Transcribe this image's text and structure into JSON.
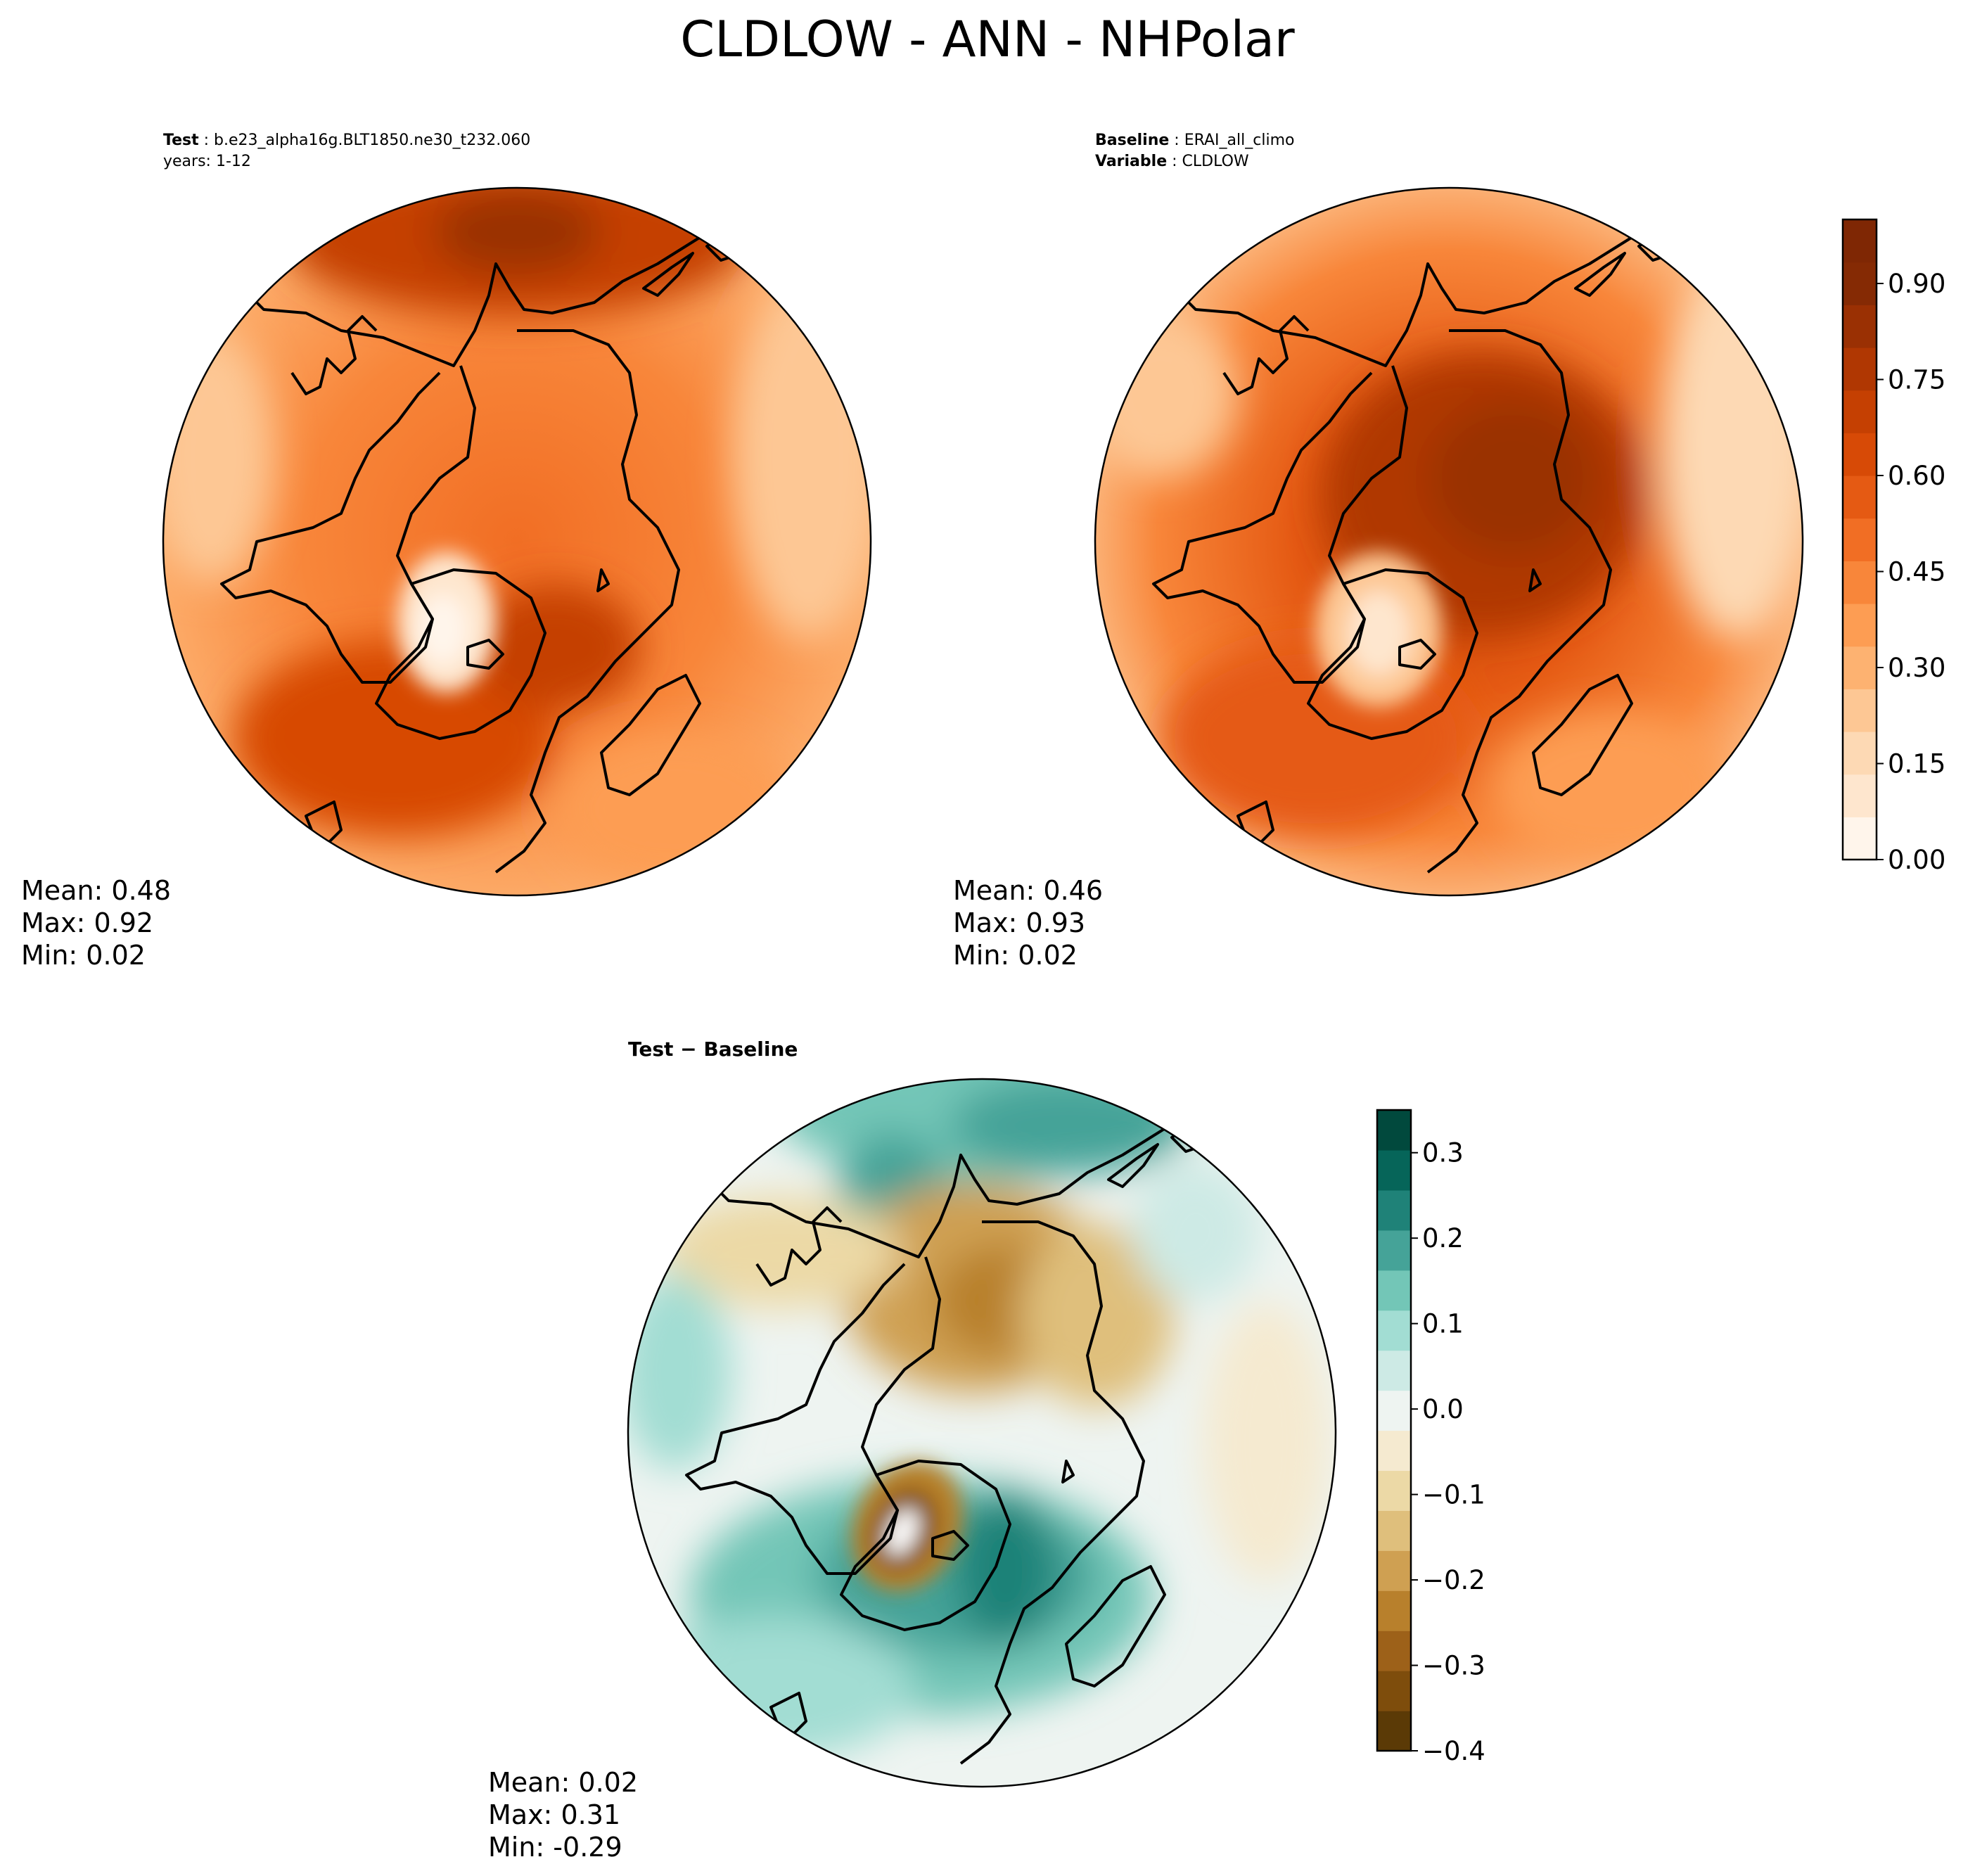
{
  "figure": {
    "title": "CLDLOW - ANN - NHPolar"
  },
  "panels": [
    {
      "id": "test",
      "header": [
        {
          "bold": "Test",
          "sep": " : ",
          "text": "b.e23_alpha16g.BLT1850.ne30_t232.060"
        },
        {
          "bold": "",
          "sep": "",
          "text": "years: 1-12"
        }
      ],
      "stats": {
        "mean": "Mean:  0.48",
        "max": "Max:  0.92",
        "min": "Min:  0.02"
      }
    },
    {
      "id": "baseline",
      "header": [
        {
          "bold": "Baseline",
          "sep": " : ",
          "text": "ERAI_all_climo"
        },
        {
          "bold": "Variable",
          "sep": " : ",
          "text": "CLDLOW"
        }
      ],
      "stats": {
        "mean": "Mean:  0.46",
        "max": "Max:  0.93",
        "min": "Min:  0.02"
      }
    },
    {
      "id": "diff",
      "header": [
        {
          "bold": "Test − Baseline",
          "sep": "",
          "text": ""
        }
      ],
      "stats": {
        "mean": "Mean:  0.02",
        "max": "Max:  0.31",
        "min": "Min: -0.29"
      }
    }
  ],
  "colorbars": {
    "top": {
      "min": 0.0,
      "max": 1.0,
      "ticks": [
        0.0,
        0.15,
        0.3,
        0.45,
        0.6,
        0.75,
        0.9
      ],
      "tick_labels": [
        "0.00",
        "0.15",
        "0.30",
        "0.45",
        "0.60",
        "0.75",
        "0.90"
      ],
      "colors": [
        "#fff5eb",
        "#fee6ce",
        "#fdd9b4",
        "#fdc794",
        "#fdb271",
        "#fd9d53",
        "#f8863a",
        "#f16e24",
        "#e55a13",
        "#d74a06",
        "#c54002",
        "#b03702",
        "#9a3003",
        "#852a04",
        "#7f2704"
      ]
    },
    "diff": {
      "min": -0.4,
      "max": 0.35,
      "ticks": [
        -0.4,
        -0.3,
        -0.2,
        -0.1,
        0.0,
        0.1,
        0.2,
        0.3
      ],
      "tick_labels": [
        "−0.4",
        "−0.3",
        "−0.2",
        "−0.1",
        "0.0",
        "0.1",
        "0.2",
        "0.3"
      ],
      "colors": [
        "#5b3a06",
        "#7e4d0c",
        "#9d6119",
        "#b8802c",
        "#cfa052",
        "#dfbf7c",
        "#ecd9a6",
        "#f5ead0",
        "#eef4f1",
        "#cdeae5",
        "#a2ddd3",
        "#73c6b7",
        "#45a398",
        "#1f8278",
        "#066559",
        "#01493d"
      ]
    }
  },
  "chart_data": [
    {
      "type": "heatmap",
      "title": "Test : b.e23_alpha16g.BLT1850.ne30_t232.060",
      "subtitle": "years: 1-12",
      "projection": "north polar stereographic",
      "colorbar": "top",
      "value_range": [
        0.0,
        1.0
      ],
      "stats": {
        "mean": 0.48,
        "max": 0.92,
        "min": 0.02
      }
    },
    {
      "type": "heatmap",
      "title": "Baseline : ERAI_all_climo",
      "subtitle": "Variable : CLDLOW",
      "projection": "north polar stereographic",
      "colorbar": "top",
      "value_range": [
        0.0,
        1.0
      ],
      "stats": {
        "mean": 0.46,
        "max": 0.93,
        "min": 0.02
      }
    },
    {
      "type": "heatmap",
      "title": "Test − Baseline",
      "projection": "north polar stereographic",
      "colorbar": "diff",
      "value_range": [
        -0.4,
        0.35
      ],
      "stats": {
        "mean": 0.02,
        "max": 0.31,
        "min": -0.29
      }
    }
  ]
}
